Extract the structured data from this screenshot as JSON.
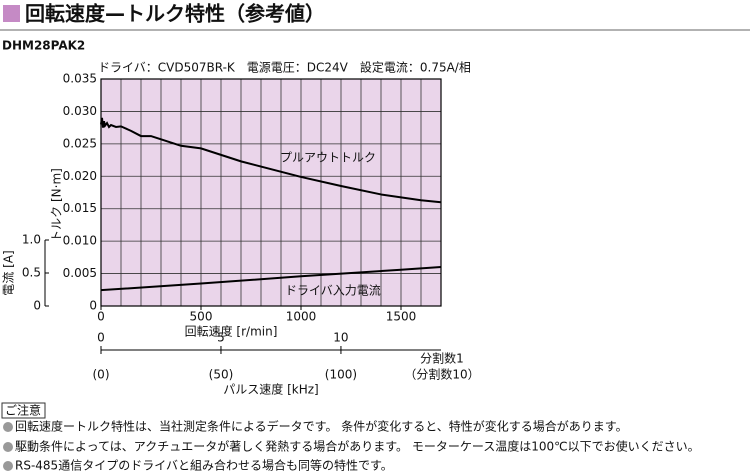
{
  "header": {
    "title": "回転速度—トルク特性（参考値）",
    "model": "DHM28PAK2"
  },
  "chart_data": {
    "type": "line",
    "subtitle": "ドライバ：CVD507BR-K　電源電圧：DC24V　設定電流：0.75A/相",
    "xlabel": "回転速度 [r/min]",
    "ylabel": "トルク [N·m]",
    "y2label": "電流 [A]",
    "xlim": [
      0,
      1700
    ],
    "xticks": [
      0,
      500,
      1000,
      1500
    ],
    "x_grid_step": 100,
    "ylim": [
      0,
      0.035
    ],
    "yticks": [
      0,
      0.005,
      {
        "value": 0.01,
        "label": "0.010"
      },
      0.015,
      {
        "value": 0.02,
        "label": "0.020"
      },
      0.025,
      {
        "value": 0.03,
        "label": "0.030"
      },
      0.035
    ],
    "y2lim": [
      0,
      1
    ],
    "y2ticks": [
      0,
      0.5,
      {
        "value": 1,
        "label": "1.0"
      }
    ],
    "grid": true,
    "background": "#ead5ea",
    "series": [
      {
        "name": "プルアウトトルク",
        "color": "#000000",
        "x": [
          0,
          5,
          10,
          15,
          20,
          30,
          40,
          50,
          75,
          100,
          150,
          200,
          250,
          300,
          400,
          500,
          600,
          700,
          800,
          1000,
          1200,
          1400,
          1600,
          1700
        ],
        "values": [
          0.028,
          0.029,
          0.0275,
          0.0285,
          0.0278,
          0.0282,
          0.0276,
          0.0279,
          0.0276,
          0.0277,
          0.027,
          0.0262,
          0.0262,
          0.0257,
          0.0247,
          0.0243,
          0.0233,
          0.0223,
          0.0215,
          0.0199,
          0.0185,
          0.0172,
          0.0163,
          0.016
        ]
      },
      {
        "name": "ドライバ入力電流",
        "color": "#000000",
        "axis": "y2",
        "x": [
          0,
          500,
          1000,
          1500,
          1700
        ],
        "values": [
          0.24,
          0.34,
          0.45,
          0.55,
          0.59
        ]
      }
    ],
    "pulse_axis": {
      "label": "パルス速度 [kHz]",
      "xlim": [
        0,
        14.17
      ],
      "xticks": [
        0,
        5,
        10
      ],
      "sub_labels": [
        "(0)",
        "(50)",
        "(100)"
      ],
      "row_labels": [
        "分割数1",
        "（分割数10）"
      ]
    }
  },
  "notes": {
    "heading": "ご注意",
    "items": [
      "回転速度ートルク特性は、当社測定条件によるデータです。 条件が変化すると、特性が変化する場合があります。",
      "駆動条件によっては、アクチュエータが著しく発熱する場合があります。 モーターケース温度は100℃以下でお使いください。",
      "RS-485通信タイプのドライバと組み合わせる場合も同等の特性です。"
    ]
  }
}
